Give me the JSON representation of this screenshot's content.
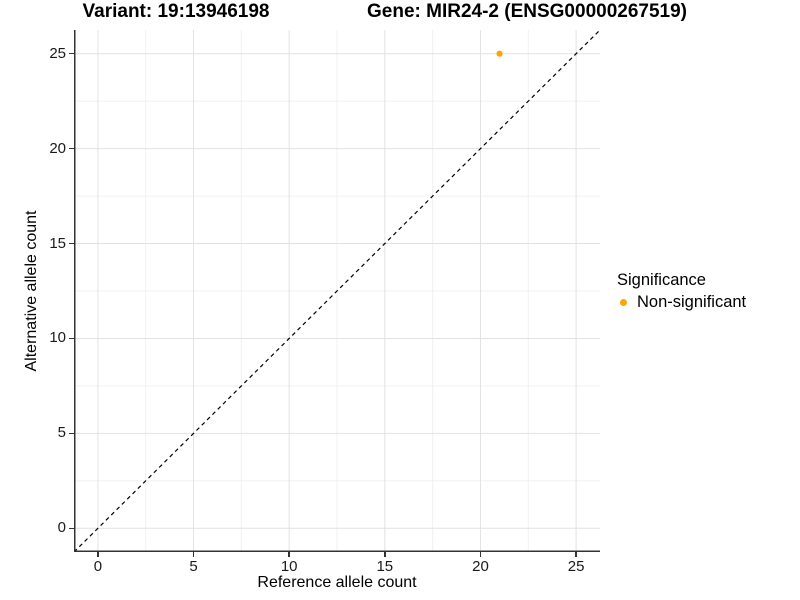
{
  "figure": {
    "titles": {
      "variant": "Variant: 19:13946198",
      "gene": "Gene: MIR24-2 (ENSG00000267519)"
    }
  },
  "chart_data": {
    "type": "scatter",
    "titles": [
      "Variant: 19:13946198",
      "Gene: MIR24-2 (ENSG00000267519)"
    ],
    "xlabel": "Reference allele count",
    "ylabel": "Alternative allele count",
    "xlim": [
      -1.25,
      26.25
    ],
    "ylim": [
      -1.25,
      26.25
    ],
    "x_ticks": [
      0,
      5,
      10,
      15,
      20,
      25
    ],
    "y_ticks": [
      0,
      5,
      10,
      15,
      20,
      25
    ],
    "x_minor_ticks": [
      2.5,
      7.5,
      12.5,
      17.5,
      22.5
    ],
    "y_minor_ticks": [
      2.5,
      7.5,
      12.5,
      17.5,
      22.5
    ],
    "grid": "major+minor",
    "identity_line": {
      "slope": 1,
      "intercept": 0,
      "style": "dashed",
      "color": "#000000"
    },
    "series": [
      {
        "name": "Non-significant",
        "color": "#FFA500",
        "points": [
          {
            "x": 21,
            "y": 25
          }
        ]
      }
    ],
    "legend": {
      "title": "Significance",
      "position": "right",
      "entries": [
        {
          "label": "Non-significant",
          "color": "#FFA500"
        }
      ]
    },
    "style": {
      "grid_major_color": "#E2E2E2",
      "grid_minor_color": "#F0F0F0",
      "axis_line_color": "#333333",
      "tick_text_color": "#1a1a1a",
      "point_radius_px": 3.1
    }
  }
}
